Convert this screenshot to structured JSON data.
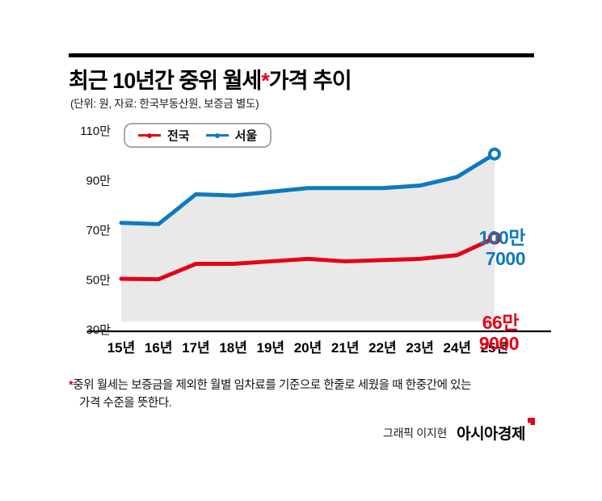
{
  "header": {
    "title_prefix": "최근 10년간 중위 월세",
    "title_asterisk": "*",
    "title_suffix": "가격 추이",
    "subtitle": "(단위: 원, 자료: 한국부동산원, 보증금 별도)"
  },
  "legend": {
    "items": [
      {
        "label": "전국",
        "color": "#e60018"
      },
      {
        "label": "서울",
        "color": "#0d7ac0"
      }
    ]
  },
  "chart_data": {
    "type": "line",
    "x_labels": [
      "15년",
      "16년",
      "17년",
      "18년",
      "19년",
      "20년",
      "21년",
      "22년",
      "23년",
      "24년",
      "25년"
    ],
    "y_ticks": [
      {
        "label": "110만",
        "value": 110
      },
      {
        "label": "90만",
        "value": 90
      },
      {
        "label": "70만",
        "value": 70
      },
      {
        "label": "50만",
        "value": 50
      },
      {
        "label": "30만",
        "value": 30
      }
    ],
    "ylim": [
      30,
      110
    ],
    "unit": "만 원",
    "grid": false,
    "legend_position": "top-left",
    "series": [
      {
        "name": "전국",
        "color": "#e60018",
        "values": [
          50.5,
          50.3,
          56.5,
          56.5,
          57.5,
          58.5,
          57.5,
          58,
          58.5,
          60,
          66.9
        ],
        "end_label_line1": "66만",
        "end_label_line2": "9000"
      },
      {
        "name": "서울",
        "color": "#0d7ac0",
        "area_fill": "#e9e9e9",
        "values": [
          73,
          72.5,
          84.5,
          84,
          85.5,
          87,
          87,
          87,
          88,
          91.5,
          100.7
        ],
        "end_label_line1": "100만",
        "end_label_line2": "7000"
      }
    ]
  },
  "footnote": {
    "asterisk": "*",
    "line1": "중위 월세는 보증금을 제외한 월별 임차료를 기준으로 한줄로 세웠을 때 한중간에 있는",
    "line2": "가격 수준을 뜻한다."
  },
  "credit": {
    "byline": "그래픽 이지현",
    "brand": "아시아경제"
  }
}
